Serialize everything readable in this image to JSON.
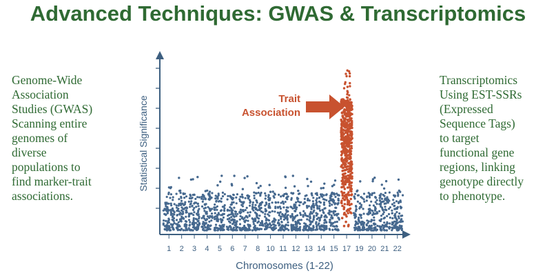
{
  "title": "Advanced Techniques: GWAS & Transcriptomics",
  "left_panel": {
    "lines": [
      "Genome-Wide",
      "Association",
      "Studies (GWAS)",
      "Scanning entire",
      "genomes of",
      "diverse",
      "populations to",
      "find marker-trait",
      "associations."
    ]
  },
  "right_panel": {
    "lines": [
      "Transcriptomics",
      "Using EST-SSRs",
      "(Expressed",
      "Sequence Tags)",
      "to target",
      "functional gene",
      "regions, linking",
      "genotype directly",
      "to phenotype."
    ]
  },
  "colors": {
    "title": "#2f6a33",
    "side_text": "#2f6a33",
    "points": "#46698f",
    "highlight": "#c8522f",
    "axis": "#3d5f80"
  },
  "chart_data": {
    "type": "scatter",
    "title": "",
    "xlabel": "Chromosomes (1-22)",
    "ylabel": "Statistical Significance",
    "tick_labels": [
      "1",
      "2",
      "3",
      "4",
      "5",
      "6",
      "7",
      "8",
      "10",
      "11",
      "12",
      "13",
      "14",
      "15",
      "17",
      "19",
      "20",
      "21",
      "22"
    ],
    "highlighted_chromosome": "17",
    "annotation": [
      "Trait",
      "Association"
    ],
    "legend": "none",
    "grid": false
  }
}
